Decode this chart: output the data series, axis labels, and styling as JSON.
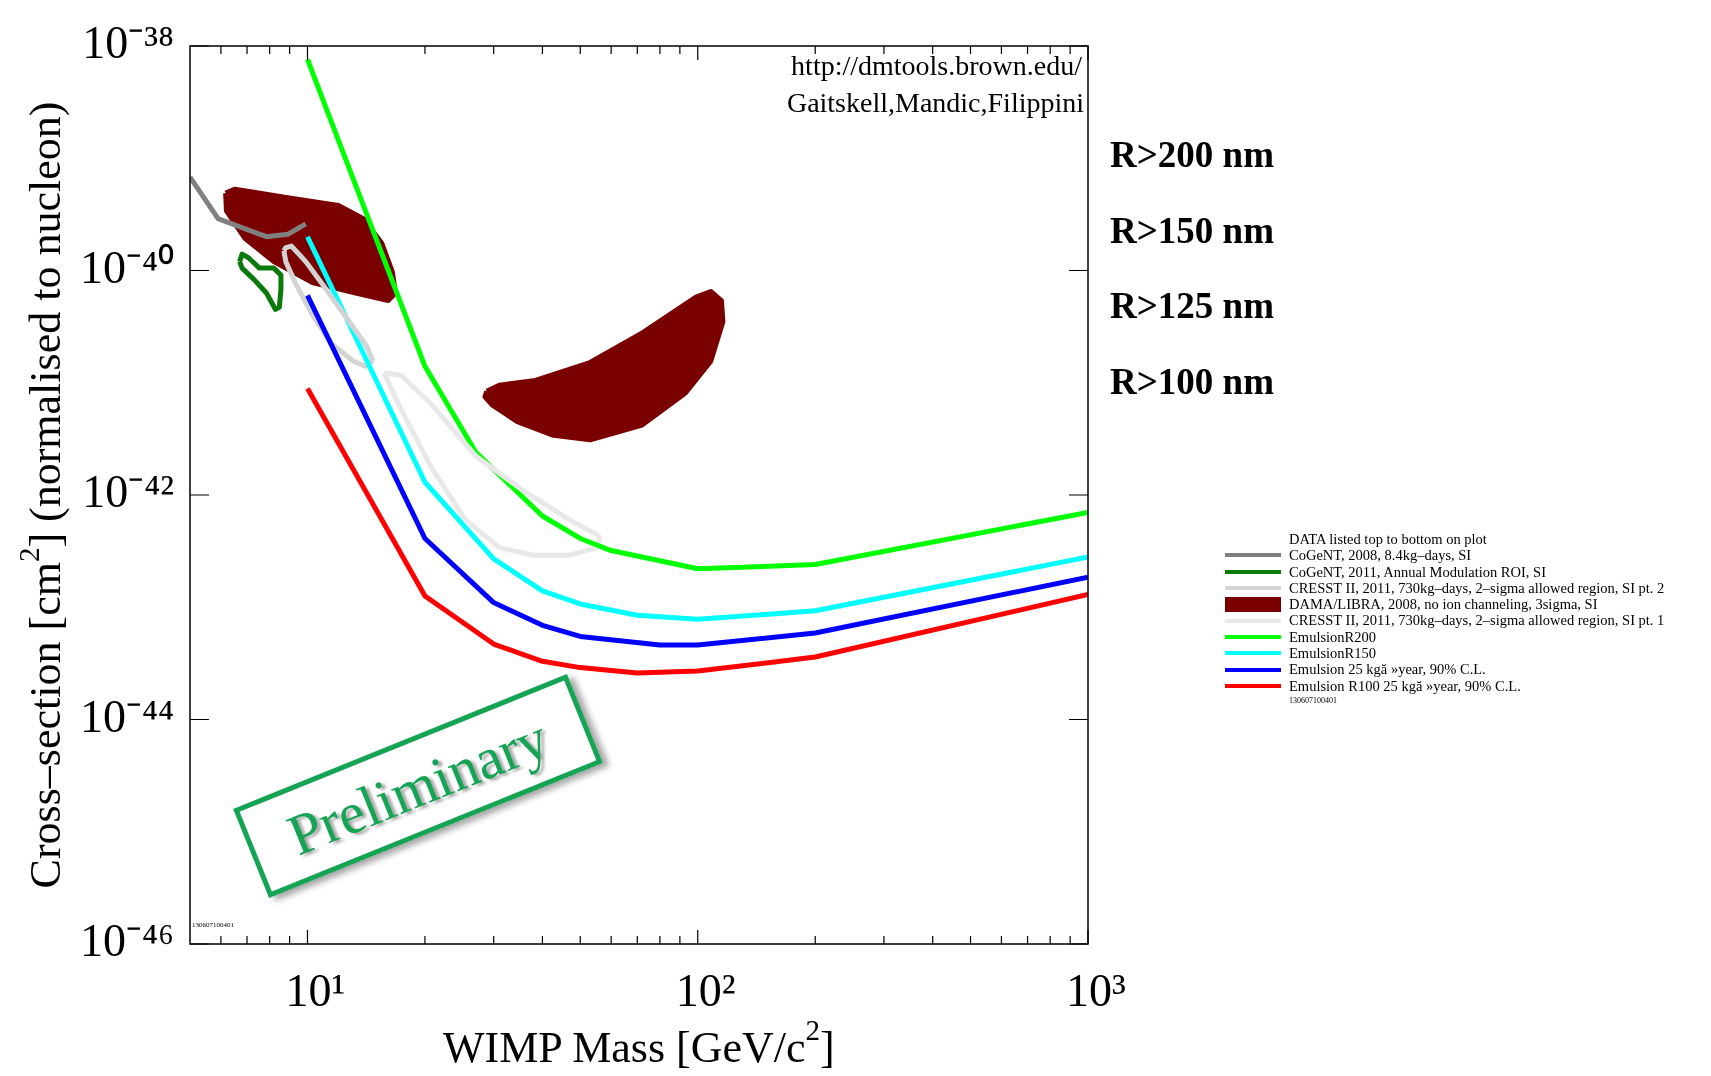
{
  "chart_data": {
    "type": "line",
    "xlabel": "WIMP Mass [GeV/c$^{2}$]",
    "ylabel": "Cross–section [cm$^{2}$] (normalised to nucleon)",
    "legend_title": "DATA listed top to bottom on plot",
    "log": "xy",
    "legend": "right",
    "marker": "none",
    "line_style": "solid",
    "xlim": [
      5,
      1000
    ],
    "ylim": [
      1e-46,
      1e-38
    ],
    "xticks": [
      {
        "value": 6,
        "label": null
      },
      {
        "value": 7,
        "label": null
      },
      {
        "value": 8,
        "label": null
      },
      {
        "value": 9,
        "label": null
      },
      {
        "value": 10,
        "label": "10¹"
      },
      {
        "value": 20,
        "label": null
      },
      {
        "value": 30,
        "label": null
      },
      {
        "value": 40,
        "label": null
      },
      {
        "value": 50,
        "label": null
      },
      {
        "value": 60,
        "label": null
      },
      {
        "value": 70,
        "label": null
      },
      {
        "value": 80,
        "label": null
      },
      {
        "value": 90,
        "label": null
      },
      {
        "value": 100,
        "label": "10²"
      },
      {
        "value": 200,
        "label": null
      },
      {
        "value": 300,
        "label": null
      },
      {
        "value": 400,
        "label": null
      },
      {
        "value": 500,
        "label": null
      },
      {
        "value": 600,
        "label": null
      },
      {
        "value": 700,
        "label": null
      },
      {
        "value": 800,
        "label": null
      },
      {
        "value": 900,
        "label": null
      },
      {
        "value": 1000,
        "label": "10³"
      }
    ],
    "yticks": [
      {
        "value": 1e-46,
        "label": "10⁻⁴⁶"
      },
      {
        "value": 1e-44,
        "label": "10⁻⁴⁴"
      },
      {
        "value": 1e-42,
        "label": "10⁻⁴²"
      },
      {
        "value": 1e-40,
        "label": "10⁻⁴⁰"
      },
      {
        "value": 1e-38,
        "label": "10⁻³⁸"
      }
    ],
    "series": [
      {
        "name": "CoGeNT, 2008, 8.4kg–days, SI",
        "color": "#808080",
        "x": [
          5.0,
          5.9,
          7.85,
          8.9,
          9.9
        ],
        "values": [
          6.8e-40,
          2.9e-40,
          2e-40,
          2.1e-40,
          2.6e-40
        ]
      },
      {
        "name": "CoGeNT, 2011, Annual Modulation ROI, SI",
        "color": "#0a7a0a",
        "x": [
          6.7,
          6.8,
          7.06,
          7.53,
          8.2,
          8.55,
          8.55,
          null,
          6.7,
          6.8,
          7.3,
          7.85,
          8.28,
          8.47,
          8.55
        ],
        "values": [
          1.2e-40,
          1.4e-40,
          1.3e-40,
          1.05e-40,
          1.05e-40,
          9.1e-41,
          6.8e-41,
          null,
          1.2e-40,
          1.05e-40,
          8.3e-41,
          6.3e-41,
          4.5e-41,
          4.7e-41,
          6.8e-41
        ]
      },
      {
        "name": "CRESST II, 2011, 730kg–days, 2–sigma allowed region, SI pt. 2",
        "color": "#d3d3d3",
        "x": [
          8.7,
          8.8,
          9.1,
          9.9,
          11.2,
          12.8,
          14.2,
          14.7
        ],
        "values": [
          1.5e-40,
          1.6e-40,
          1.65e-40,
          1.2e-40,
          6.7e-41,
          3.5e-41,
          2.1e-41,
          1.56e-41
        ]
      },
      {
        "name": "DAMA/LIBRA, 2008, no ion channeling, 3sigma, SI",
        "type": "area",
        "color": "#7a0000",
        "x": [
          6.17,
          6.5,
          8.73,
          12.0,
          13.9,
          15.5,
          16.5,
          16.8,
          16.1,
          13.3,
          10.3,
          8.2,
          6.9,
          6.2,
          6.17
        ],
        "values": [
          4.9e-40,
          5.3e-40,
          4.5e-40,
          3.8e-40,
          2.9e-40,
          1.75e-40,
          9.7e-41,
          6.3e-41,
          5.4e-41,
          6.3e-41,
          7.8e-41,
          1.2e-40,
          1.95e-40,
          3.4e-40,
          4.9e-40
        ]
      },
      {
        "name": "CRESST II, 2011, 730kg–days, 2–sigma allowed region, SI pt. 1",
        "color": "#e8e8e8",
        "x": [
          15.7,
          17.4,
          20.7,
          27.1,
          35.6,
          46.6,
          56.2
        ],
        "values": [
          1.23e-41,
          1.16e-41,
          6.5e-42,
          2.2e-42,
          1.1e-42,
          6.1e-43,
          4.3e-43
        ]
      },
      {
        "name": "EmulsionR200",
        "color": "#00ff00",
        "x": [
          10,
          20,
          27,
          40,
          50,
          60,
          100,
          200,
          1000
        ],
        "values": [
          7.6e-39,
          1.4e-41,
          2.4e-42,
          6.5e-43,
          4.1e-43,
          3.2e-43,
          2.2e-43,
          2.4e-43,
          7e-43
        ]
      },
      {
        "name": "EmulsionR150",
        "color": "#00ffff",
        "x": [
          10,
          20,
          30,
          40,
          50,
          70,
          100,
          200,
          1000
        ],
        "values": [
          2e-40,
          1.3e-42,
          2.7e-43,
          1.4e-43,
          1.07e-43,
          8.5e-44,
          7.8e-44,
          9.3e-44,
          2.8e-43
        ]
      },
      {
        "name": "Emulsion 25 kgă »year, 90% C.L.",
        "color": "#0000ff",
        "x": [
          10,
          20,
          30,
          40,
          50,
          80,
          100,
          200,
          1000
        ],
        "values": [
          6e-41,
          4.1e-43,
          1.1e-43,
          6.9e-44,
          5.5e-44,
          4.6e-44,
          4.6e-44,
          5.9e-44,
          1.85e-43
        ]
      },
      {
        "name": "Emulsion R100 25 kgă »year, 90% C.L.",
        "color": "#ff0000",
        "x": [
          10,
          20,
          30,
          40,
          50,
          70,
          100,
          200,
          1000
        ],
        "values": [
          8.9e-42,
          1.26e-43,
          4.7e-44,
          3.3e-44,
          2.9e-44,
          2.6e-44,
          2.7e-44,
          3.6e-44,
          1.3e-43
        ]
      },
      {
        "color": "#d3d3d3",
        "x": [
          8.7,
          8.8,
          9.3,
          10.3,
          11.5,
          13.1,
          14.1,
          14.7
        ],
        "values": [
          1.5e-40,
          1.2e-40,
          7.8e-41,
          4e-41,
          2.25e-41,
          1.56e-41,
          1.4e-41,
          1.56e-41
        ]
      },
      {
        "color": "#e8e8e8",
        "x": [
          15.7,
          17.4,
          20.7,
          25.3,
          31.0,
          38.0,
          46.6,
          55.3,
          56.2
        ],
        "values": [
          1.23e-41,
          5.7e-42,
          1.8e-42,
          6.1e-43,
          3.4e-43,
          2.9e-43,
          2.9e-43,
          3.4e-43,
          4.3e-43
        ]
      },
      {
        "type": "area",
        "color": "#7a0000",
        "x": [
          28.8,
          31,
          38.4,
          52.7,
          72.3,
          99,
          108,
          115,
          116,
          108,
          93,
          72,
          53,
          42.7,
          34.5,
          29.8,
          28.5,
          28.8
        ],
        "values": [
          8.4e-42,
          9.5e-42,
          1.05e-41,
          1.5e-41,
          2.8e-41,
          5.8e-41,
          6.5e-41,
          5.4e-41,
          3.5e-41,
          1.56e-41,
          8.1e-42,
          4.2e-42,
          3.1e-42,
          3.4e-42,
          4.5e-42,
          6.3e-42,
          7.5e-42,
          8.4e-42
        ]
      }
    ],
    "annotations": [
      "http://dmtools.brown.edu/",
      "Gaitskell,Mandic,Filippini",
      "R>200 nm",
      "R>150 nm",
      "R>125 nm",
      "R>100 nm",
      "Preliminary",
      "130607100401",
      "130607100401"
    ]
  }
}
